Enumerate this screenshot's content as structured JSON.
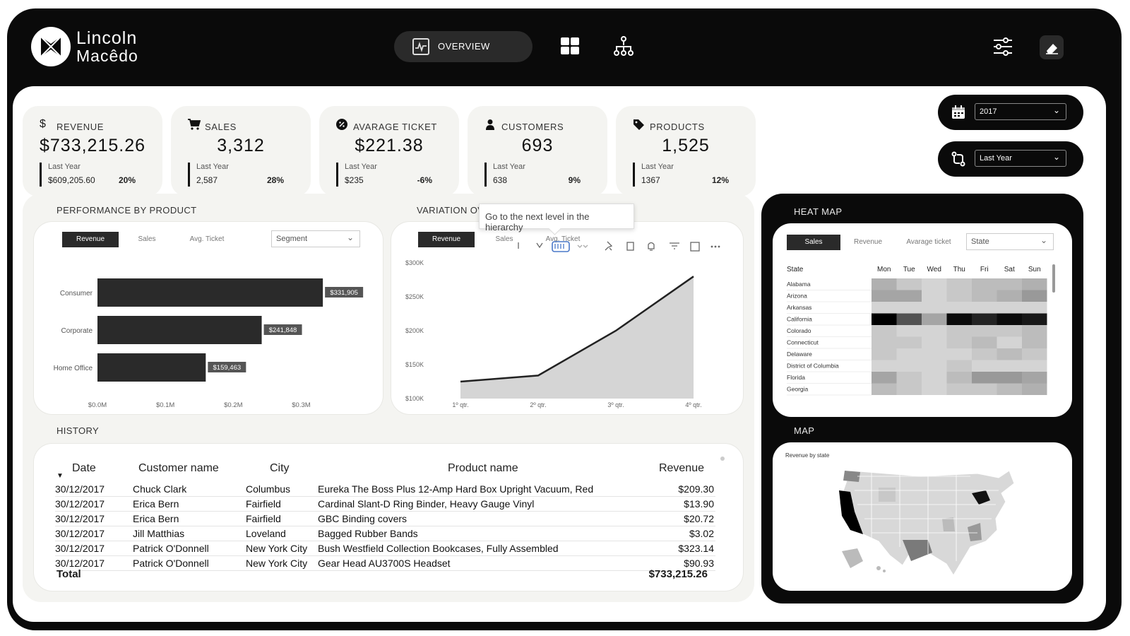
{
  "brand": {
    "line1": "Lincoln",
    "line2": "Macêdo"
  },
  "nav": {
    "overview_label": "OVERVIEW"
  },
  "kpis": [
    {
      "title": "REVENUE",
      "value": "$733,215.26",
      "last_year_label": "Last Year",
      "last_year_value": "$609,205.60",
      "pct": "20%",
      "icon": "dollar-icon"
    },
    {
      "title": "SALES",
      "value": "3,312",
      "last_year_label": "Last Year",
      "last_year_value": "2,587",
      "pct": "28%",
      "icon": "cart-icon"
    },
    {
      "title": "AVARAGE TICKET",
      "value": "$221.38",
      "last_year_label": "Last Year",
      "last_year_value": "$235",
      "pct": "-6%",
      "icon": "percent-badge-icon"
    },
    {
      "title": "CUSTOMERS",
      "value": "693",
      "last_year_label": "Last Year",
      "last_year_value": "638",
      "pct": "9%",
      "icon": "person-icon"
    },
    {
      "title": "PRODUCTS",
      "value": "1,525",
      "last_year_label": "Last Year",
      "last_year_value": "1367",
      "pct": "12%",
      "icon": "tag-icon"
    }
  ],
  "filters": {
    "year": "2017",
    "comparison": "Last Year"
  },
  "performance": {
    "title": "PERFORMANCE BY PRODUCT",
    "tabs": [
      "Revenue",
      "Sales",
      "Avg. Ticket"
    ],
    "dropdown": "Segment",
    "chart_data": {
      "type": "bar",
      "orientation": "horizontal",
      "categories": [
        "Consumer",
        "Corporate",
        "Home Office"
      ],
      "values": [
        331905,
        241848,
        159463
      ],
      "value_labels": [
        "$331,905",
        "$241,848",
        "$159,463"
      ],
      "xticks": [
        "$0.0M",
        "$0.1M",
        "$0.2M",
        "$0.3M"
      ],
      "xlim": [
        0,
        0.39
      ]
    }
  },
  "variation": {
    "title": "VARIATION OV",
    "tabs": [
      "Revenue",
      "Sales",
      "Avg. Ticket"
    ],
    "tooltip": "Go to the next level in the hierarchy",
    "chart_data": {
      "type": "area",
      "categories": [
        "1º qtr.",
        "2º qtr.",
        "3º qtr.",
        "4º qtr."
      ],
      "values": [
        125000,
        134000,
        200000,
        280000
      ],
      "yticks": [
        "$100K",
        "$150K",
        "$200K",
        "$250K",
        "$300K"
      ],
      "ylim": [
        100000,
        300000
      ]
    }
  },
  "history": {
    "title": "HISTORY",
    "columns": [
      "Date",
      "Customer name",
      "City",
      "Product name",
      "Revenue"
    ],
    "rows": [
      [
        "30/12/2017",
        "Chuck Clark",
        "Columbus",
        "Eureka The Boss Plus 12-Amp Hard Box Upright Vacuum, Red",
        "$209.30"
      ],
      [
        "30/12/2017",
        "Erica Bern",
        "Fairfield",
        "Cardinal Slant-D Ring Binder, Heavy Gauge Vinyl",
        "$13.90"
      ],
      [
        "30/12/2017",
        "Erica Bern",
        "Fairfield",
        "GBC Binding covers",
        "$20.72"
      ],
      [
        "30/12/2017",
        "Jill Matthias",
        "Loveland",
        "Bagged Rubber Bands",
        "$3.02"
      ],
      [
        "30/12/2017",
        "Patrick O'Donnell",
        "New York City",
        "Bush Westfield Collection Bookcases, Fully Assembled",
        "$323.14"
      ],
      [
        "30/12/2017",
        "Patrick O'Donnell",
        "New York City",
        "Gear Head AU3700S Headset",
        "$90.93"
      ]
    ],
    "total_label": "Total",
    "total_value": "$733,215.26"
  },
  "heatmap": {
    "title": "HEAT MAP",
    "tabs": [
      "Sales",
      "Revenue",
      "Avarage ticket"
    ],
    "dropdown": "State",
    "chart_data": {
      "type": "heatmap",
      "row_header": "State",
      "columns": [
        "Mon",
        "Tue",
        "Wed",
        "Thu",
        "Fri",
        "Sat",
        "Sun"
      ],
      "rows": [
        "Alabama",
        "Arizona",
        "Arkansas",
        "California",
        "Colorado",
        "Connecticut",
        "Delaware",
        "District of Columbia",
        "Florida",
        "Georgia"
      ],
      "values": [
        [
          0.25,
          0.15,
          0.1,
          0.15,
          0.2,
          0.2,
          0.25
        ],
        [
          0.3,
          0.3,
          0.1,
          0.15,
          0.2,
          0.25,
          0.35
        ],
        [
          0.1,
          0.1,
          0.1,
          0.1,
          0.1,
          0.1,
          0.1
        ],
        [
          1.0,
          0.65,
          0.3,
          0.95,
          0.85,
          0.95,
          0.9
        ],
        [
          0.15,
          0.1,
          0.1,
          0.15,
          0.15,
          0.15,
          0.2
        ],
        [
          0.15,
          0.15,
          0.1,
          0.15,
          0.2,
          0.1,
          0.2
        ],
        [
          0.15,
          0.1,
          0.1,
          0.1,
          0.15,
          0.2,
          0.15
        ],
        [
          0.1,
          0.1,
          0.1,
          0.15,
          0.1,
          0.1,
          0.1
        ],
        [
          0.3,
          0.15,
          0.1,
          0.2,
          0.35,
          0.35,
          0.3
        ],
        [
          0.2,
          0.15,
          0.1,
          0.15,
          0.15,
          0.2,
          0.25
        ]
      ]
    }
  },
  "map": {
    "title": "MAP",
    "subtitle": "Revenue by state"
  }
}
